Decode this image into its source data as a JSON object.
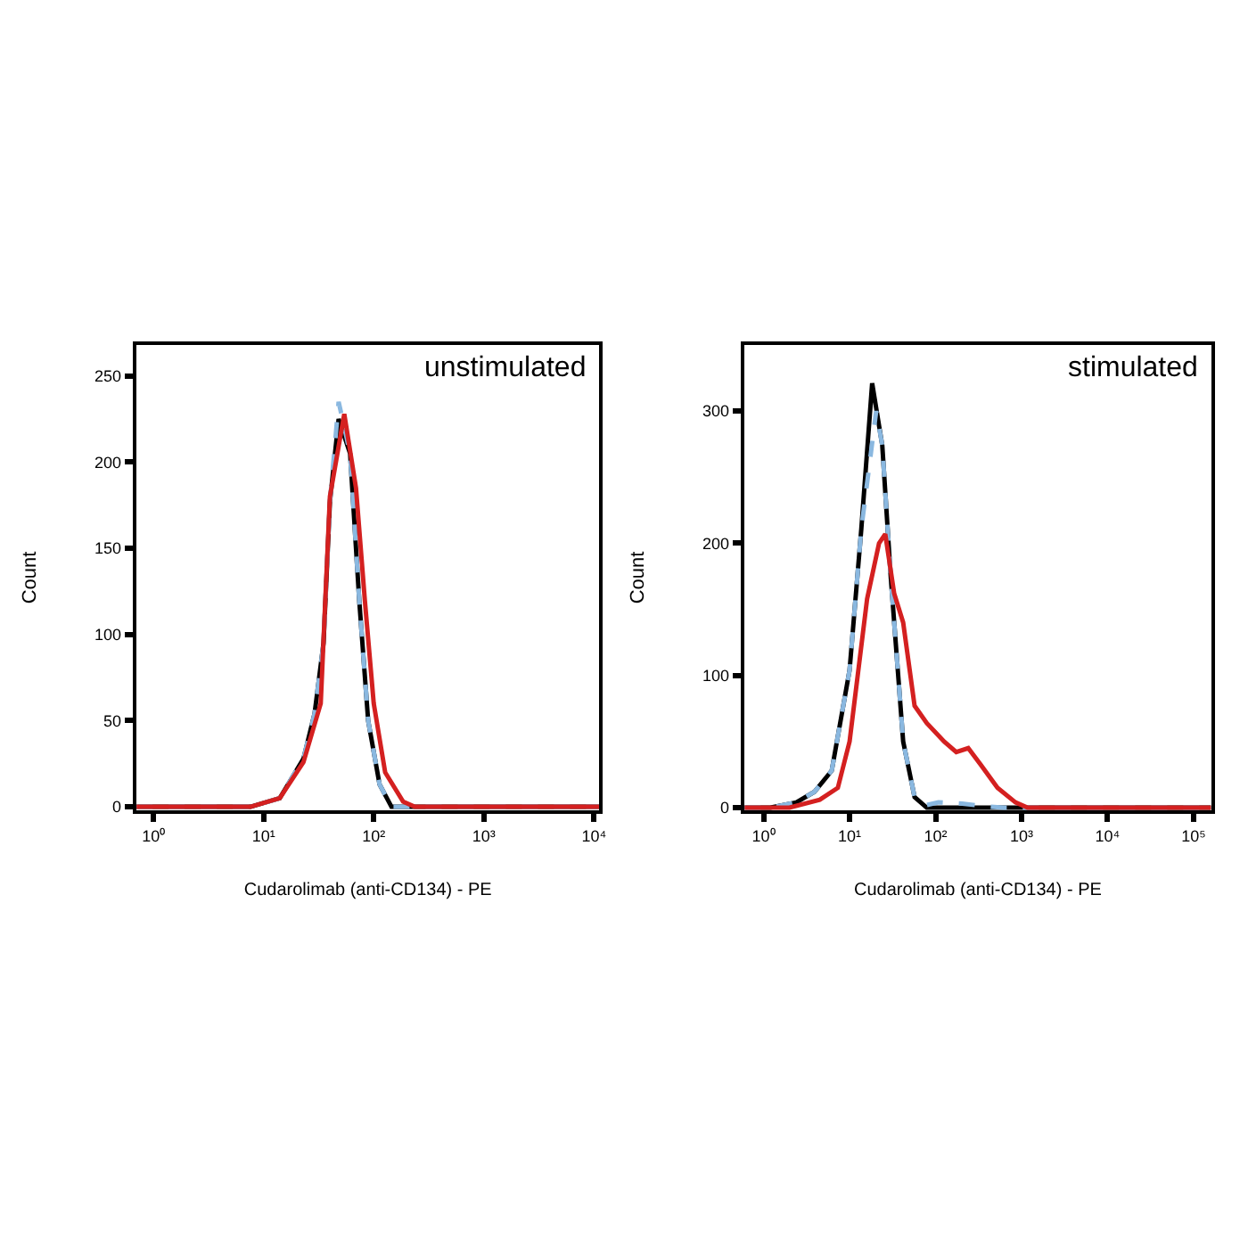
{
  "chart_data": [
    {
      "type": "line",
      "title": "unstimulated",
      "xlabel": "Cudarolimab (anti-CD134) - PE",
      "ylabel": "Count",
      "log": "x",
      "xlim": [
        0.7,
        11200
      ],
      "ylim": [
        -2,
        268
      ],
      "xticks": [
        {
          "value": 1,
          "label": "10⁰"
        },
        {
          "value": 10,
          "label": "10¹"
        },
        {
          "value": 100,
          "label": "10²"
        },
        {
          "value": 1000,
          "label": "10³"
        },
        {
          "value": 10000,
          "label": "10⁴"
        }
      ],
      "yticks": [
        0,
        50,
        100,
        150,
        200,
        250
      ],
      "series": [
        {
          "color": "#000000",
          "line_style": "solid",
          "x": [
            0.7,
            7.6,
            14,
            23,
            29,
            35,
            40,
            48,
            61,
            74,
            89,
            113,
            145,
            11200
          ],
          "values": [
            0,
            0,
            5,
            28,
            54,
            95,
            177,
            225,
            205,
            119,
            50,
            13,
            0,
            0
          ]
        },
        {
          "color": "#8ab8e0",
          "line_style": "dashed",
          "x": [
            0.7,
            7.6,
            14,
            23,
            29,
            35,
            40,
            48,
            61,
            74,
            89,
            113,
            145,
            11200
          ],
          "values": [
            0,
            0,
            5,
            28,
            54,
            95,
            177,
            235,
            205,
            119,
            50,
            13,
            0,
            0
          ]
        },
        {
          "color": "#d42020",
          "line_style": "solid",
          "x": [
            0.7,
            7.6,
            14,
            23,
            33,
            40,
            54,
            69,
            83,
            100,
            127,
            185,
            236,
            11200
          ],
          "values": [
            0,
            0,
            5,
            26,
            60,
            180,
            228,
            185,
            120,
            60,
            20,
            3,
            0,
            0
          ]
        }
      ]
    },
    {
      "type": "line",
      "title": "stimulated",
      "xlabel": "Cudarolimab (anti-CD134) - PE",
      "ylabel": "Count",
      "log": "x",
      "xlim": [
        0.6,
        160000
      ],
      "ylim": [
        -2,
        350
      ],
      "xticks": [
        {
          "value": 1,
          "label": "10⁰"
        },
        {
          "value": 10,
          "label": "10¹"
        },
        {
          "value": 100,
          "label": "10²"
        },
        {
          "value": 1000,
          "label": "10³"
        },
        {
          "value": 10000,
          "label": "10⁴"
        },
        {
          "value": 100000,
          "label": "10⁵"
        }
      ],
      "yticks": [
        0,
        100,
        200,
        300
      ],
      "series": [
        {
          "color": "#000000",
          "line_style": "solid",
          "x": [
            0.6,
            1.2,
            2.4,
            3.9,
            6.2,
            10,
            13.7,
            18.3,
            24,
            30,
            42,
            57,
            79,
            160000
          ],
          "values": [
            0,
            0,
            4,
            12,
            28,
            104,
            211,
            321,
            274,
            176,
            50,
            8,
            0,
            0
          ]
        },
        {
          "color": "#8ab8e0",
          "line_style": "dashed",
          "x": [
            0.6,
            1.2,
            2.4,
            3.9,
            6.2,
            10,
            13.7,
            20.4,
            24,
            30,
            42,
            57,
            79,
            108,
            204,
            387,
            620,
            160000
          ],
          "values": [
            0,
            0,
            4,
            12,
            28,
            104,
            211,
            300,
            274,
            176,
            50,
            8,
            2,
            4,
            3,
            1,
            0,
            0
          ]
        },
        {
          "color": "#d42020",
          "line_style": "solid",
          "x": [
            0.6,
            2.0,
            4.5,
            7.3,
            10,
            16,
            22,
            26,
            33,
            42,
            57,
            79,
            126,
            174,
            240,
            330,
            525,
            850,
            1175,
            160000
          ],
          "values": [
            0,
            0,
            6,
            15,
            50,
            158,
            200,
            207,
            162,
            140,
            77,
            64,
            50,
            42,
            45,
            33,
            15,
            4,
            0,
            0
          ]
        }
      ]
    }
  ]
}
